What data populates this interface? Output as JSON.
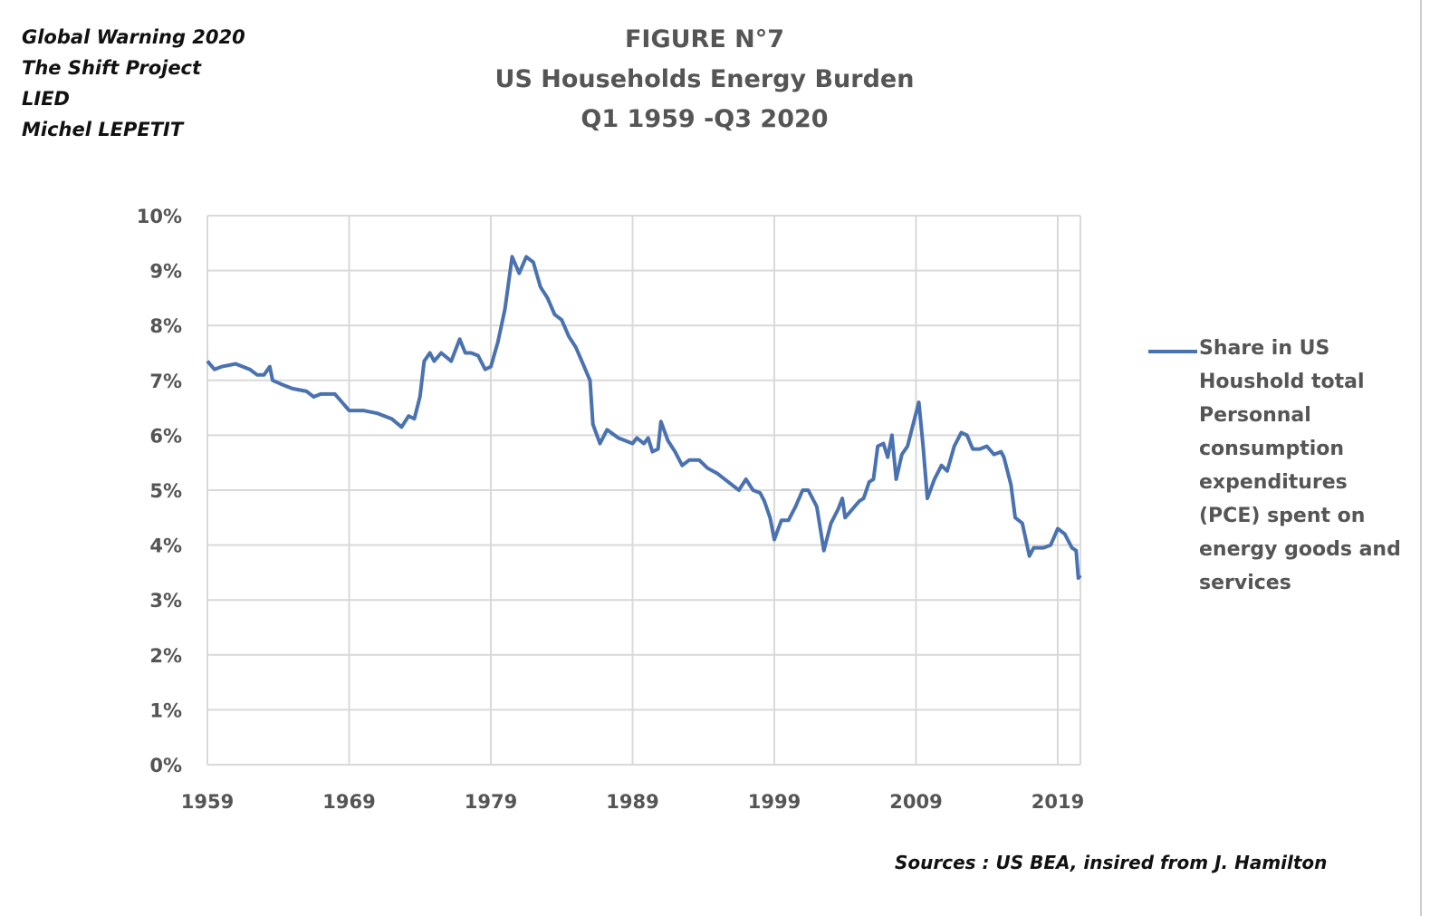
{
  "credits": [
    "Global Warning 2020",
    "The Shift Project",
    "LIED",
    "Michel LEPETIT"
  ],
  "source": "Sources : US BEA, insired from J. Hamilton",
  "chart_data": {
    "type": "line",
    "title": [
      "FIGURE N°7",
      "US Households Energy Burden",
      "Q1 1959 -Q3 2020"
    ],
    "xlabel": "",
    "ylabel": "",
    "xlim": [
      1959,
      2020.6
    ],
    "ylim": [
      0,
      10
    ],
    "x_ticks": [
      1959,
      1969,
      1979,
      1989,
      1999,
      2009,
      2019
    ],
    "x_tick_labels": [
      "1959",
      "1969",
      "1979",
      "1989",
      "1999",
      "2009",
      "2019"
    ],
    "y_ticks": [
      0,
      1,
      2,
      3,
      4,
      5,
      6,
      7,
      8,
      9,
      10
    ],
    "y_tick_labels": [
      "0%",
      "1%",
      "2%",
      "3%",
      "4%",
      "5%",
      "6%",
      "7%",
      "8%",
      "9%",
      "10%"
    ],
    "grid": true,
    "legend_position": "right",
    "series": [
      {
        "name": "Share in US Houshold total Personnal consumption expenditures (PCE) spent on energy goods and services",
        "color": "#4a72b0",
        "x": [
          1959,
          1959.5,
          1960,
          1961,
          1962,
          1962.5,
          1963,
          1963.4,
          1963.6,
          1964.5,
          1965,
          1966,
          1966.5,
          1967,
          1968,
          1968.5,
          1969,
          1970,
          1971,
          1972,
          1972.7,
          1973.2,
          1973.6,
          1974,
          1974.3,
          1974.7,
          1975,
          1975.5,
          1976.2,
          1976.8,
          1977.2,
          1977.6,
          1978.1,
          1978.6,
          1979,
          1979.5,
          1980,
          1980.5,
          1981,
          1981.5,
          1982,
          1982.5,
          1983,
          1983.5,
          1984,
          1984.5,
          1985,
          1985.5,
          1986,
          1986.2,
          1986.7,
          1987.2,
          1988,
          1989,
          1989.3,
          1989.8,
          1990.1,
          1990.4,
          1990.8,
          1991,
          1991.5,
          1992,
          1992.5,
          1993,
          1993.7,
          1994.3,
          1995,
          1996,
          1996.5,
          1997,
          1997.5,
          1998,
          1998.3,
          1998.7,
          1999,
          1999.5,
          2000,
          2000.5,
          2001,
          2001.4,
          2002,
          2002.5,
          2003,
          2003.5,
          2003.8,
          2004,
          2004.5,
          2005,
          2005.3,
          2005.7,
          2006,
          2006.3,
          2006.7,
          2007,
          2007.3,
          2007.6,
          2008,
          2008.4,
          2008.8,
          2009.2,
          2009.5,
          2009.8,
          2010.3,
          2010.8,
          2011.2,
          2011.7,
          2012.2,
          2012.6,
          2013,
          2013.5,
          2014,
          2014.5,
          2015,
          2015.2,
          2015.7,
          2016,
          2016.5,
          2017,
          2017.3,
          2018,
          2018.5,
          2019,
          2019.5,
          2020,
          2020.3,
          2020.45,
          2020.6
        ],
        "y": [
          7.35,
          7.2,
          7.25,
          7.3,
          7.2,
          7.1,
          7.1,
          7.25,
          7.0,
          6.9,
          6.85,
          6.8,
          6.7,
          6.75,
          6.75,
          6.6,
          6.45,
          6.45,
          6.4,
          6.3,
          6.15,
          6.35,
          6.3,
          6.7,
          7.35,
          7.5,
          7.35,
          7.5,
          7.35,
          7.75,
          7.5,
          7.5,
          7.45,
          7.2,
          7.25,
          7.7,
          8.3,
          9.25,
          8.95,
          9.25,
          9.15,
          8.7,
          8.5,
          8.2,
          8.1,
          7.8,
          7.6,
          7.3,
          7.0,
          6.2,
          5.85,
          6.1,
          5.95,
          5.85,
          5.95,
          5.85,
          5.95,
          5.7,
          5.75,
          6.25,
          5.9,
          5.7,
          5.45,
          5.55,
          5.55,
          5.4,
          5.3,
          5.1,
          5.0,
          5.2,
          5.0,
          4.95,
          4.8,
          4.5,
          4.1,
          4.45,
          4.45,
          4.7,
          5.0,
          5.0,
          4.7,
          3.9,
          4.4,
          4.65,
          4.85,
          4.5,
          4.65,
          4.8,
          4.85,
          5.15,
          5.2,
          5.8,
          5.85,
          5.6,
          6.0,
          5.2,
          5.65,
          5.8,
          6.2,
          6.6,
          5.8,
          4.85,
          5.2,
          5.45,
          5.35,
          5.8,
          6.05,
          6.0,
          5.75,
          5.75,
          5.8,
          5.65,
          5.7,
          5.6,
          5.1,
          4.5,
          4.4,
          3.8,
          3.95,
          3.95,
          4.0,
          4.3,
          4.2,
          3.95,
          3.9,
          3.4,
          3.45
        ]
      }
    ]
  }
}
